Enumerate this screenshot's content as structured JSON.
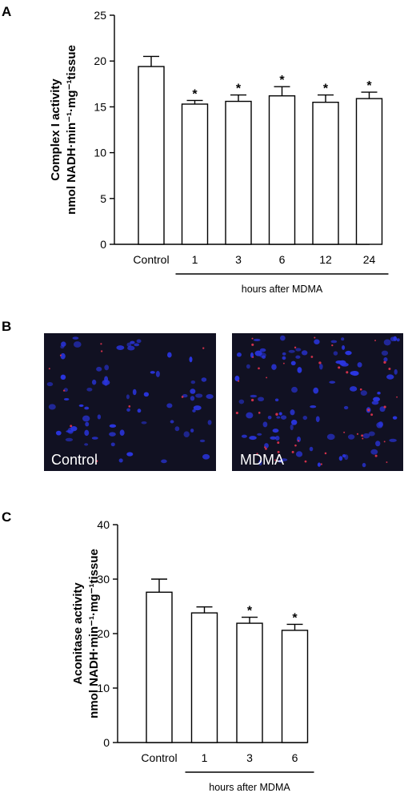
{
  "figure": {
    "panel_a": "A",
    "panel_b": "B",
    "panel_c": "C"
  },
  "micrographs": {
    "left_label": "Control",
    "right_label": "MDMA",
    "background": "#111122",
    "nucleus_color": "#2a35e0",
    "marker_color": "#d0304a"
  },
  "chart_data": [
    {
      "type": "bar",
      "panel": "A",
      "categories": [
        "Control",
        "1",
        "3",
        "6",
        "12",
        "24"
      ],
      "values": [
        19.4,
        15.3,
        15.6,
        16.2,
        15.5,
        15.9
      ],
      "errors": [
        1.1,
        0.4,
        0.7,
        1.0,
        0.8,
        0.7
      ],
      "significant": [
        false,
        true,
        true,
        true,
        true,
        true
      ],
      "significance_marker": "*",
      "ylabel_line1": "Complex I activity",
      "ylabel_line2": "nmol NADH·min⁻¹·mg⁻¹tissue",
      "group_label": "hours after MDMA",
      "ylim": [
        0,
        25
      ],
      "yticks": [
        "0",
        "5",
        "10",
        "15",
        "20",
        "25"
      ]
    },
    {
      "type": "bar",
      "panel": "C",
      "categories": [
        "Control",
        "1",
        "3",
        "6"
      ],
      "values": [
        27.6,
        23.8,
        21.9,
        20.6
      ],
      "errors": [
        2.4,
        1.1,
        1.1,
        1.1
      ],
      "significant": [
        false,
        false,
        true,
        true
      ],
      "significance_marker": "*",
      "ylabel_line1": "Aconitase activity",
      "ylabel_line2": "nmol NADH·min⁻¹·mg⁻¹tissue",
      "group_label": "hours after MDMA",
      "ylim": [
        0,
        40
      ],
      "yticks": [
        "0",
        "10",
        "20",
        "30",
        "40"
      ]
    }
  ]
}
